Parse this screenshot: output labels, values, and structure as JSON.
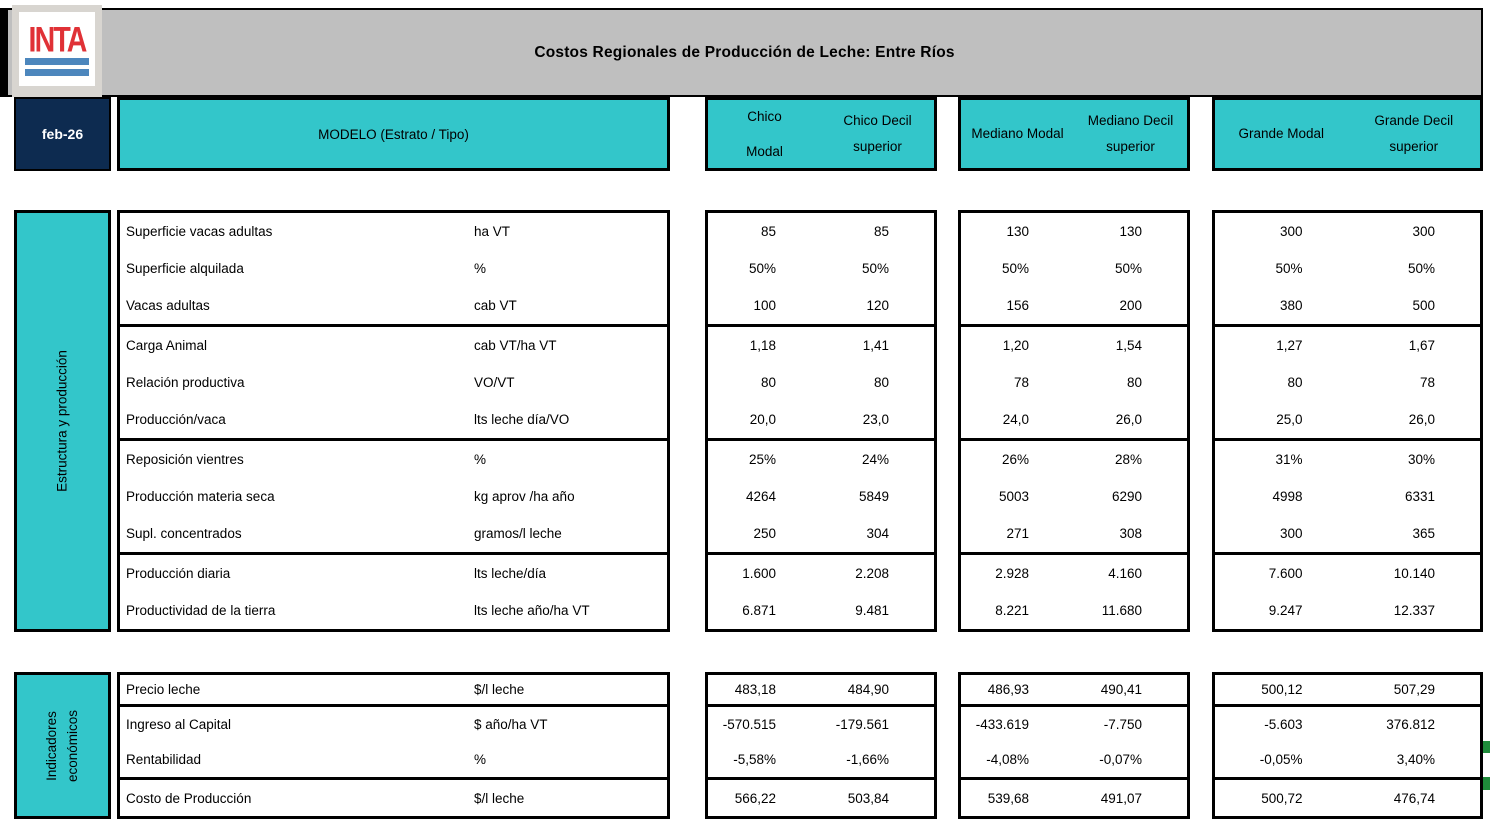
{
  "header": {
    "title": "Costos Regionales de Producción de Leche: Entre Ríos",
    "date": "feb-26",
    "model_label": "MODELO (Estrato / Tipo)",
    "logo_text": "INTA",
    "groups": [
      {
        "modal": "Chico\nModal",
        "decil": "Chico Decil superior"
      },
      {
        "modal": "Mediano Modal",
        "decil": "Mediano Decil superior"
      },
      {
        "modal": "Grande Modal",
        "decil": "Grande Decil superior"
      }
    ]
  },
  "colors": {
    "teal": "#33C6CA",
    "navy": "#0D2B50",
    "header_gray": "#BFBFBF",
    "logo_red": "#E03136",
    "logo_blue": "#4D87BD",
    "comment_green": "#1F8B3B"
  },
  "sections": [
    {
      "side_label": "Estructura y producción",
      "groups": [
        {
          "rows": [
            {
              "label": "Superficie vacas adultas",
              "unit": "ha VT",
              "values": [
                "85",
                "85",
                "130",
                "130",
                "300",
                "300"
              ]
            },
            {
              "label": "Superficie alquilada",
              "unit": "%",
              "values": [
                "50%",
                "50%",
                "50%",
                "50%",
                "50%",
                "50%"
              ]
            },
            {
              "label": "Vacas adultas",
              "unit": "cab VT",
              "values": [
                "100",
                "120",
                "156",
                "200",
                "380",
                "500"
              ]
            }
          ]
        },
        {
          "rows": [
            {
              "label": "Carga Animal",
              "unit": "cab VT/ha VT",
              "values": [
                "1,18",
                "1,41",
                "1,20",
                "1,54",
                "1,27",
                "1,67"
              ]
            },
            {
              "label": "Relación productiva",
              "unit": "VO/VT",
              "values": [
                "80",
                "80",
                "78",
                "80",
                "80",
                "78"
              ]
            },
            {
              "label": "Producción/vaca",
              "unit": "lts leche día/VO",
              "values": [
                "20,0",
                "23,0",
                "24,0",
                "26,0",
                "25,0",
                "26,0"
              ]
            }
          ]
        },
        {
          "rows": [
            {
              "label": "Reposición vientres",
              "unit": "%",
              "values": [
                "25%",
                "24%",
                "26%",
                "28%",
                "31%",
                "30%"
              ]
            },
            {
              "label": "Producción materia seca",
              "unit": "kg aprov /ha año",
              "values": [
                "4264",
                "5849",
                "5003",
                "6290",
                "4998",
                "6331"
              ]
            },
            {
              "label": "Supl. concentrados",
              "unit": "gramos/l leche",
              "values": [
                "250",
                "304",
                "271",
                "308",
                "300",
                "365"
              ]
            }
          ]
        },
        {
          "rows": [
            {
              "label": "Producción diaria",
              "unit": "lts leche/día",
              "values": [
                "1.600",
                "2.208",
                "2.928",
                "4.160",
                "7.600",
                "10.140"
              ]
            },
            {
              "label": "Productividad de la tierra",
              "unit": "lts leche año/ha VT",
              "values": [
                "6.871",
                "9.481",
                "8.221",
                "11.680",
                "9.247",
                "12.337"
              ]
            }
          ]
        }
      ]
    },
    {
      "side_label": "Indicadores\neconómicos",
      "groups": [
        {
          "rows": [
            {
              "label": "Precio leche",
              "unit": "$/l leche",
              "values": [
                "483,18",
                "484,90",
                "486,93",
                "490,41",
                "500,12",
                "507,29"
              ]
            }
          ]
        },
        {
          "rows": [
            {
              "label": "Ingreso al Capital",
              "unit": "$ año/ha VT",
              "values": [
                "-570.515",
                "-179.561",
                "-433.619",
                "-7.750",
                "-5.603",
                "376.812"
              ]
            },
            {
              "label": "Rentabilidad",
              "unit": "%",
              "values": [
                "-5,58%",
                "-1,66%",
                "-4,08%",
                "-0,07%",
                "-0,05%",
                "3,40%"
              ]
            }
          ]
        },
        {
          "rows": [
            {
              "label": "Costo de Producción",
              "unit": "$/l leche",
              "values": [
                "566,22",
                "503,84",
                "539,68",
                "491,07",
                "500,72",
                "476,74"
              ]
            }
          ]
        }
      ]
    }
  ]
}
